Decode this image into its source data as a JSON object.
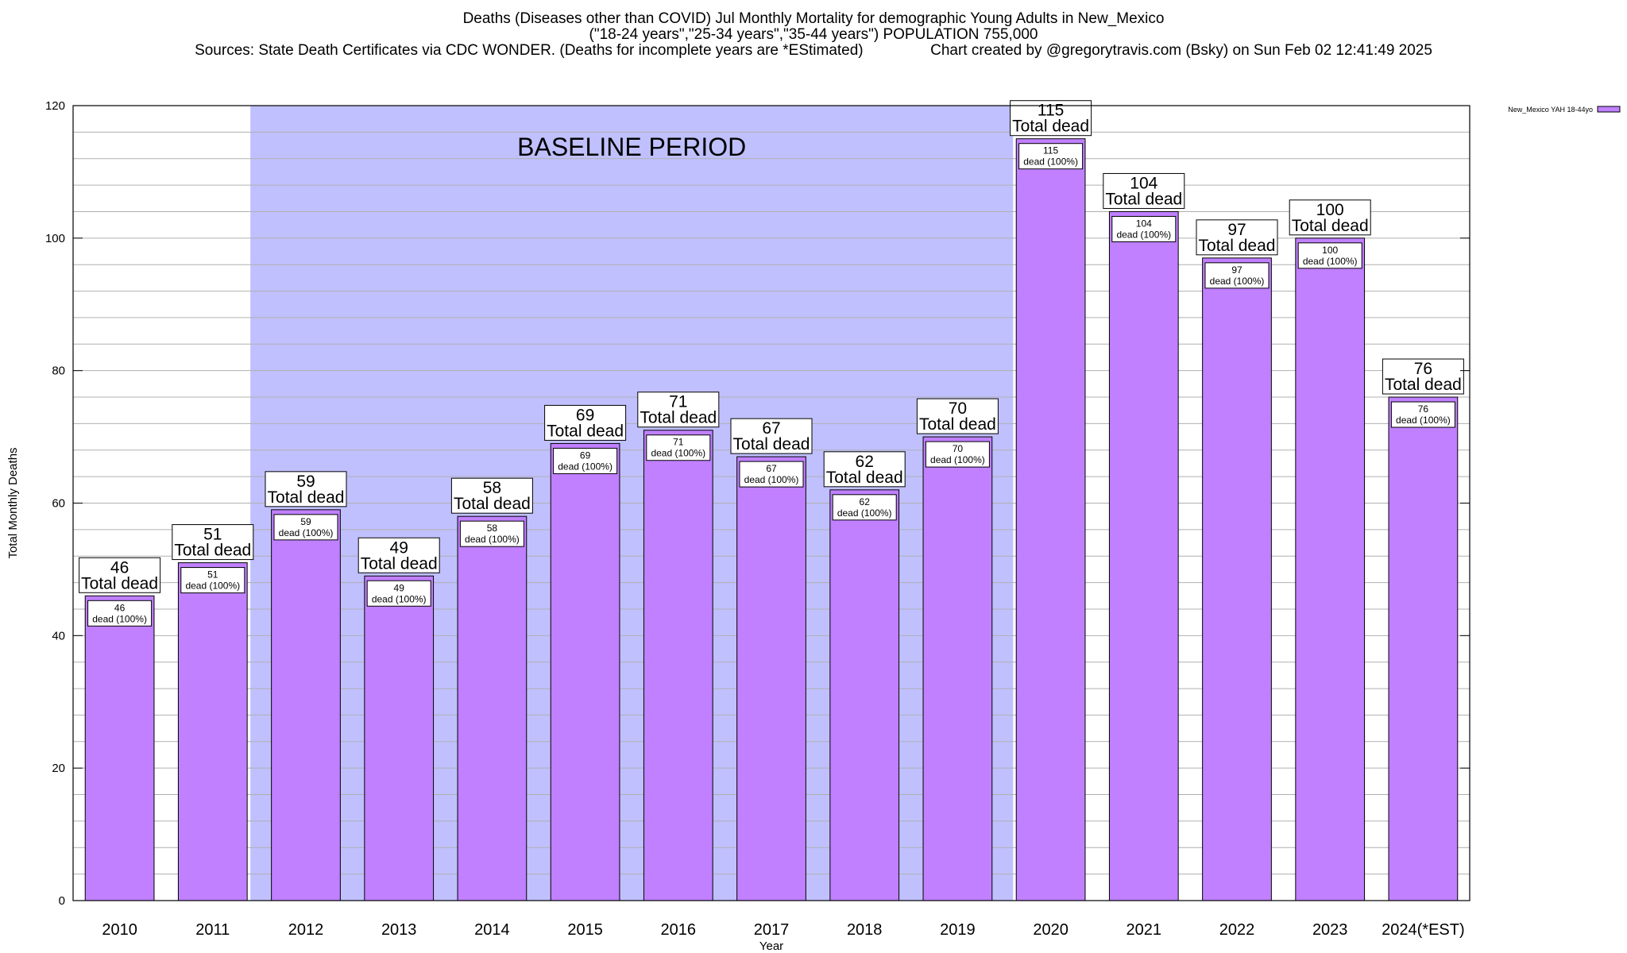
{
  "header": {
    "title_line1": "Deaths (Diseases other than COVID) Jul Monthly Mortality for demographic Young Adults in New_Mexico",
    "title_line2": "(\"18-24 years\",\"25-34 years\",\"35-44 years\") POPULATION 755,000",
    "title_line3": "Sources: State Death Certificates via CDC WONDER. (Deaths for incomplete years are *EStimated)                Chart created by @gregorytravis.com (Bsky) on Sun Feb 02 12:41:49 2025"
  },
  "chart_data": {
    "type": "bar",
    "title": "Deaths (Diseases other than COVID) Jul Monthly Mortality for demographic Young Adults in New_Mexico",
    "xlabel": "Year",
    "ylabel": "Total Monthly Deaths",
    "ylim": [
      0,
      120
    ],
    "yticks": [
      0,
      20,
      40,
      60,
      80,
      100,
      120
    ],
    "grid": true,
    "legend_position": "top-right",
    "categories": [
      "2010",
      "2011",
      "2012",
      "2013",
      "2014",
      "2015",
      "2016",
      "2017",
      "2018",
      "2019",
      "2020",
      "2021",
      "2022",
      "2023",
      "2024(*EST)"
    ],
    "series": [
      {
        "name": "New_Mexico YAH 18-44yo",
        "values": [
          46,
          51,
          59,
          49,
          58,
          69,
          71,
          67,
          62,
          70,
          115,
          104,
          97,
          100,
          76
        ]
      }
    ],
    "total_label": "Total dead",
    "inner_label": "dead (100%)",
    "baseline": {
      "label": "BASELINE PERIOD",
      "start": "2012",
      "end": "2019"
    },
    "colors": {
      "bar": "#c080ff",
      "baseline_band": "#c0c0ff",
      "grid": "#b0b0b0"
    }
  }
}
